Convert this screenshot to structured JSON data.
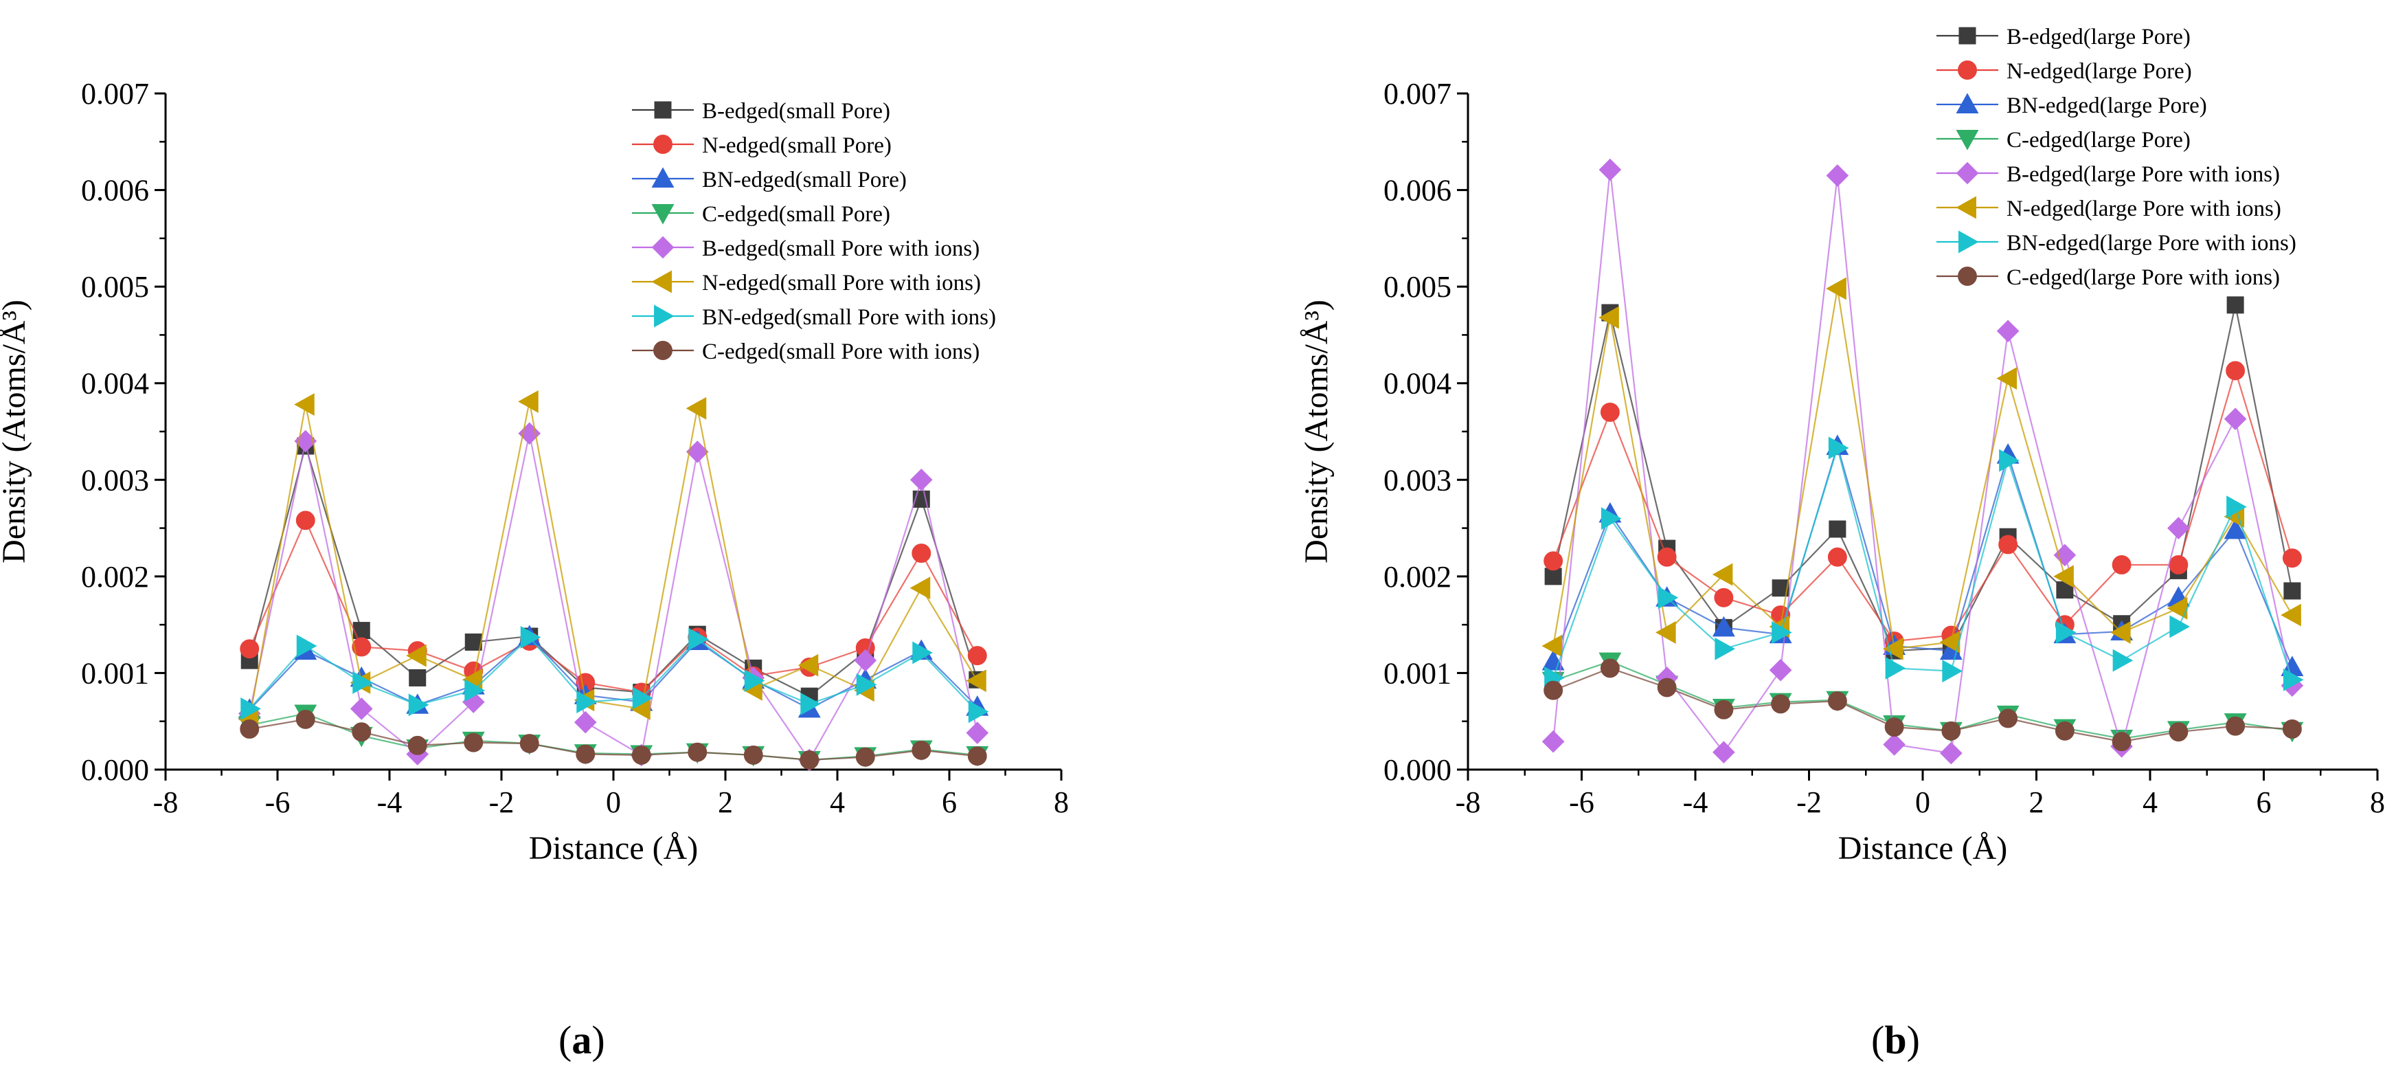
{
  "figure": {
    "captions": [
      {
        "open": "(",
        "letter": "a",
        "close": ")"
      },
      {
        "open": "(",
        "letter": "b",
        "close": ")"
      }
    ]
  },
  "colors": {
    "B": "#3c3c3c",
    "N": "#e8413a",
    "BN": "#2e63d6",
    "C": "#2fae66",
    "B_ion": "#c06ee6",
    "N_ion": "#c89e00",
    "BN_ion": "#1cc3cf",
    "C_ion": "#7a4a3c"
  },
  "chart_data": [
    {
      "type": "line",
      "panel": "a",
      "xlabel": "Distance (Å)",
      "ylabel": "Density (Atoms/Å³)",
      "xlim": [
        -8,
        8
      ],
      "ylim": [
        0,
        0.007
      ],
      "xticks": [
        "-8",
        "-6",
        "-4",
        "-2",
        "0",
        "2",
        "4",
        "6",
        "8"
      ],
      "yticks": [
        "0.000",
        "0.001",
        "0.002",
        "0.003",
        "0.004",
        "0.005",
        "0.006",
        "0.007"
      ],
      "legend_position": "top-right",
      "x": [
        -6.5,
        -5.5,
        -4.5,
        -3.5,
        -2.5,
        -1.5,
        -0.5,
        0.5,
        1.5,
        2.5,
        3.5,
        4.5,
        5.5,
        6.5
      ],
      "series": [
        {
          "name": "B-edged(small Pore)",
          "marker": "square",
          "color": "#3c3c3c",
          "values": [
            0.00113,
            0.00335,
            0.00144,
            0.00095,
            0.00132,
            0.00138,
            0.00085,
            0.0008,
            0.0014,
            0.00105,
            0.00076,
            0.00122,
            0.0028,
            0.00093
          ]
        },
        {
          "name": "N-edged(small Pore)",
          "marker": "circle",
          "color": "#e8413a",
          "values": [
            0.00125,
            0.00258,
            0.00127,
            0.00123,
            0.00102,
            0.00133,
            0.0009,
            0.0008,
            0.00137,
            0.00097,
            0.00106,
            0.00126,
            0.00224,
            0.00118
          ]
        },
        {
          "name": "BN-edged(small Pore)",
          "marker": "triangle-up",
          "color": "#2e63d6",
          "values": [
            0.00062,
            0.00123,
            0.00095,
            0.00067,
            0.00087,
            0.00138,
            0.00077,
            0.0007,
            0.00133,
            0.00093,
            0.00063,
            0.00093,
            0.00123,
            0.00065
          ]
        },
        {
          "name": "C-edged(small Pore)",
          "marker": "triangle-down",
          "color": "#2fae66",
          "values": [
            0.00046,
            0.00058,
            0.00035,
            0.00022,
            0.0003,
            0.00027,
            0.00017,
            0.00016,
            0.00018,
            0.00015,
            0.0001,
            0.00014,
            0.00021,
            0.00015
          ]
        },
        {
          "name": "B-edged(small Pore with ions)",
          "marker": "diamond",
          "color": "#c06ee6",
          "values": [
            0.00058,
            0.0034,
            0.00063,
            0.00016,
            0.0007,
            0.00348,
            0.00049,
            0.00015,
            0.00329,
            0.00095,
            0.0001,
            0.00113,
            0.003,
            0.00038
          ]
        },
        {
          "name": "N-edged(small Pore with ions)",
          "marker": "triangle-left",
          "color": "#c89e00",
          "values": [
            0.00052,
            0.00378,
            0.0009,
            0.00118,
            0.00093,
            0.00381,
            0.00072,
            0.00063,
            0.00374,
            0.00083,
            0.00108,
            0.00082,
            0.00188,
            0.00092
          ]
        },
        {
          "name": "BN-edged(small Pore with ions)",
          "marker": "triangle-right",
          "color": "#1cc3cf",
          "values": [
            0.00063,
            0.00128,
            0.0009,
            0.00067,
            0.00082,
            0.00137,
            0.0007,
            0.00074,
            0.00135,
            0.00092,
            0.00068,
            0.00088,
            0.00121,
            0.0006
          ]
        },
        {
          "name": "C-edged(small Pore  with ions)",
          "marker": "circle",
          "color": "#7a4a3c",
          "values": [
            0.00042,
            0.00052,
            0.00039,
            0.00025,
            0.00028,
            0.00027,
            0.00016,
            0.00015,
            0.00018,
            0.00015,
            0.0001,
            0.00013,
            0.0002,
            0.00014
          ]
        }
      ]
    },
    {
      "type": "line",
      "panel": "b",
      "xlabel": "Distance (Å)",
      "ylabel": "Density (Atoms/Å³)",
      "xlim": [
        -8,
        8
      ],
      "ylim": [
        0,
        0.007
      ],
      "xticks": [
        "-8",
        "-6",
        "-4",
        "-2",
        "0",
        "2",
        "4",
        "6",
        "8"
      ],
      "yticks": [
        "0.000",
        "0.001",
        "0.002",
        "0.003",
        "0.004",
        "0.005",
        "0.006",
        "0.007"
      ],
      "legend_position": "top-right",
      "x": [
        -6.5,
        -5.5,
        -4.5,
        -3.5,
        -2.5,
        -1.5,
        -0.5,
        0.5,
        1.5,
        2.5,
        3.5,
        4.5,
        5.5,
        6.5
      ],
      "series": [
        {
          "name": "B-edged(large Pore)",
          "marker": "square",
          "color": "#3c3c3c",
          "values": [
            0.002,
            0.00473,
            0.00229,
            0.00147,
            0.00188,
            0.00249,
            0.00123,
            0.00126,
            0.00241,
            0.00186,
            0.00151,
            0.00206,
            0.00481,
            0.00185
          ]
        },
        {
          "name": "N-edged(large Pore)",
          "marker": "circle",
          "color": "#e8413a",
          "values": [
            0.00216,
            0.0037,
            0.0022,
            0.00178,
            0.0016,
            0.0022,
            0.00133,
            0.00139,
            0.00233,
            0.0015,
            0.00212,
            0.00212,
            0.00413,
            0.00219
          ]
        },
        {
          "name": "BN-edged(large Pore)",
          "marker": "triangle-up",
          "color": "#2e63d6",
          "values": [
            0.00112,
            0.00265,
            0.00178,
            0.00147,
            0.0014,
            0.00335,
            0.00128,
            0.00123,
            0.00326,
            0.0014,
            0.00143,
            0.00178,
            0.00248,
            0.00106
          ]
        },
        {
          "name": "C-edged(large Pore)",
          "marker": "triangle-down",
          "color": "#2fae66",
          "values": [
            0.00092,
            0.00112,
            0.00088,
            0.00064,
            0.0007,
            0.00072,
            0.00047,
            0.0004,
            0.00057,
            0.00043,
            0.00032,
            0.00041,
            0.00049,
            0.0004
          ]
        },
        {
          "name": "B-edged(large Pore with ions)",
          "marker": "diamond",
          "color": "#c06ee6",
          "values": [
            0.00029,
            0.00621,
            0.00095,
            0.00018,
            0.00103,
            0.00615,
            0.00026,
            0.00017,
            0.00454,
            0.00222,
            0.00024,
            0.0025,
            0.00363,
            0.00087
          ]
        },
        {
          "name": "N-edged(large Pore with ions)",
          "marker": "triangle-left",
          "color": "#c89e00",
          "values": [
            0.00128,
            0.00468,
            0.00142,
            0.00202,
            0.00148,
            0.00498,
            0.00125,
            0.00132,
            0.00405,
            0.002,
            0.00142,
            0.00167,
            0.00262,
            0.0016
          ]
        },
        {
          "name": "BN-edged(large Pore with ions)",
          "marker": "triangle-right",
          "color": "#1cc3cf",
          "values": [
            0.00095,
            0.0026,
            0.00178,
            0.00125,
            0.00142,
            0.00333,
            0.00105,
            0.00102,
            0.0032,
            0.00142,
            0.00113,
            0.00148,
            0.00272,
            0.00093
          ]
        },
        {
          "name": "C-edged(large Pore with ions)",
          "marker": "circle",
          "color": "#7a4a3c",
          "values": [
            0.00082,
            0.00105,
            0.00085,
            0.00062,
            0.00068,
            0.00071,
            0.00044,
            0.0004,
            0.00053,
            0.0004,
            0.00029,
            0.00039,
            0.00045,
            0.00042
          ]
        }
      ]
    }
  ]
}
